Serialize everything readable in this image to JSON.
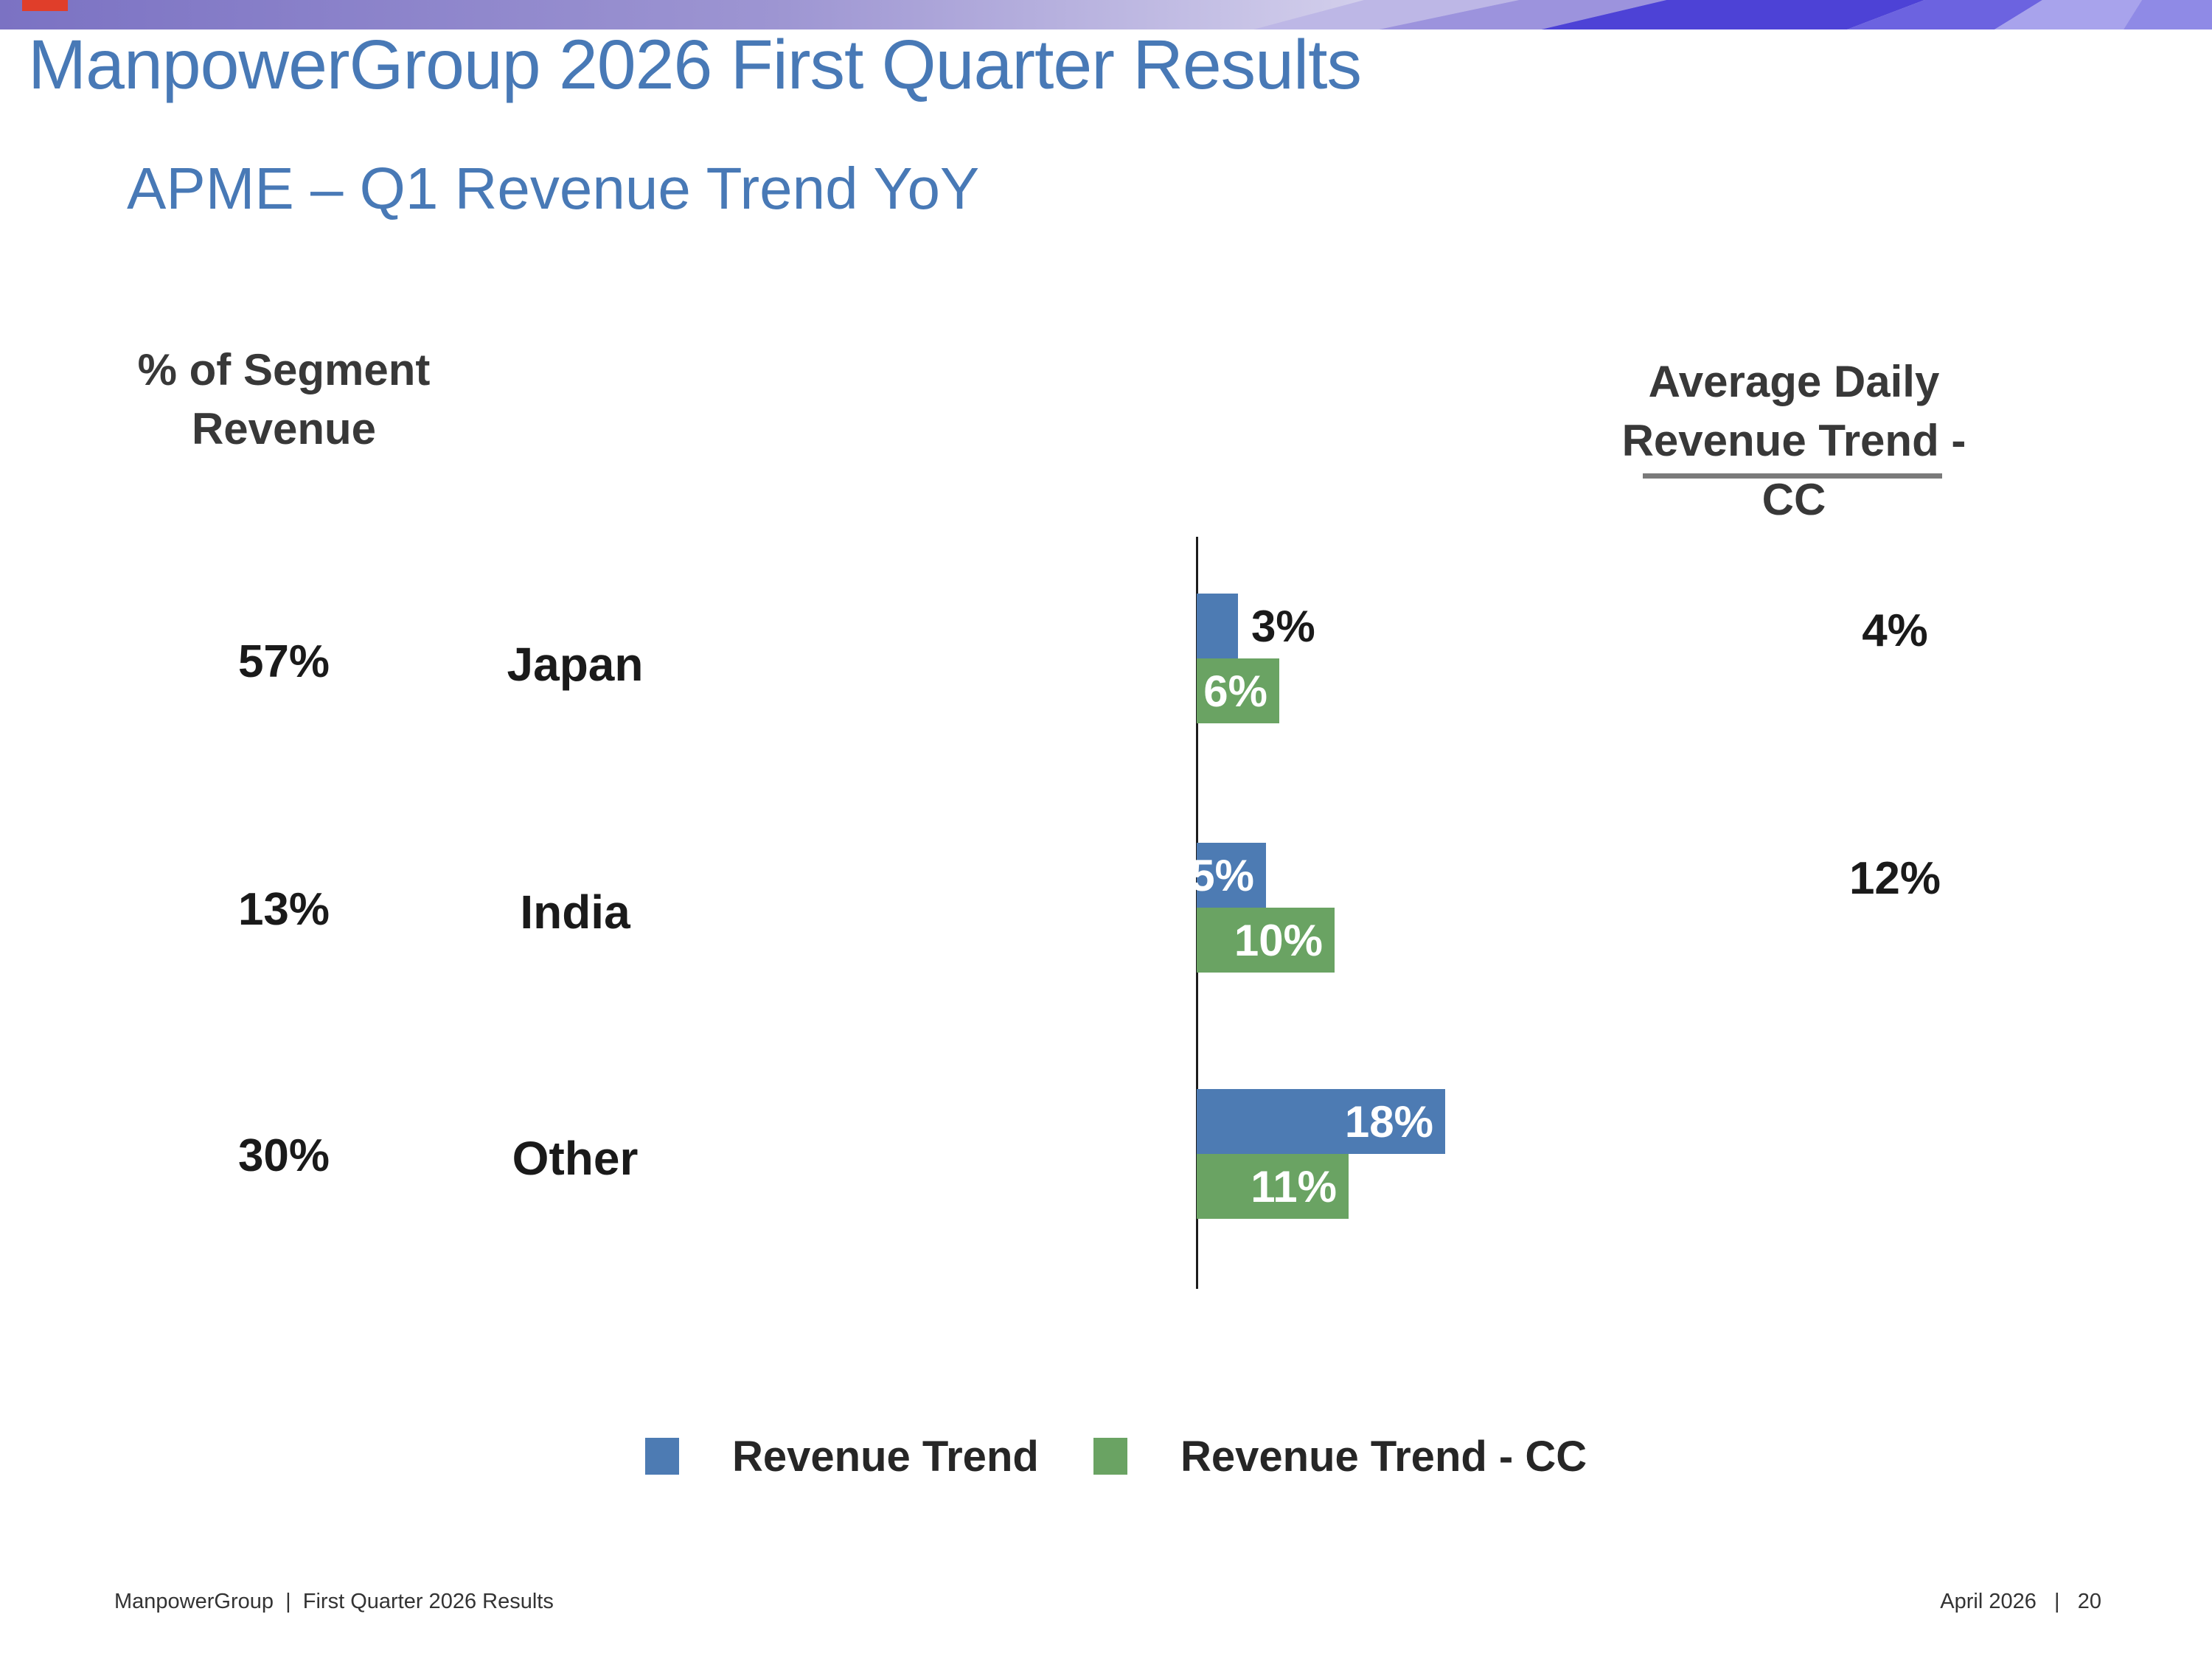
{
  "slide": {
    "title": "ManpowerGroup 2026 First Quarter Results",
    "subtitle": "APME – Q1 Revenue Trend YoY"
  },
  "colors": {
    "title_blue": "#4879b6",
    "bar_blue": "#4d7bb3",
    "bar_green": "#6aa363",
    "banner_purple": "#7b72c3",
    "underline_gray": "#7a7a7a",
    "red_accent": "#e03e2a",
    "text_dark": "#1a1a1a"
  },
  "chart_data": {
    "type": "bar",
    "orientation": "horizontal",
    "value_suffix": "%",
    "categories": [
      "Japan",
      "India",
      "Other"
    ],
    "series": [
      {
        "name": "Revenue Trend",
        "color": "#4d7bb3",
        "values": [
          3,
          5,
          18
        ]
      },
      {
        "name": "Revenue Trend - CC",
        "color": "#6aa363",
        "values": [
          6,
          10,
          11
        ]
      }
    ],
    "left_header_lines": [
      "% of Segment",
      "Revenue"
    ],
    "right_header_lines": [
      "Average Daily",
      "Revenue Trend - CC"
    ],
    "rows": [
      {
        "category": "Japan",
        "segment_share": "57%",
        "revenue_trend": "3%",
        "revenue_trend_cc": "6%",
        "avg_daily_revenue_trend_cc": "4%"
      },
      {
        "category": "India",
        "segment_share": "13%",
        "revenue_trend": "5%",
        "revenue_trend_cc": "10%",
        "avg_daily_revenue_trend_cc": "12%"
      },
      {
        "category": "Other",
        "segment_share": "30%",
        "revenue_trend": "18%",
        "revenue_trend_cc": "11%",
        "avg_daily_revenue_trend_cc": ""
      }
    ],
    "legend_position": "bottom",
    "grid": false
  },
  "legend": {
    "items": [
      {
        "label": "Revenue Trend",
        "color": "#4d7bb3"
      },
      {
        "label": "Revenue Trend - CC",
        "color": "#6aa363"
      }
    ]
  },
  "footer": {
    "left": "ManpowerGroup  |  First Quarter 2026 Results",
    "right": "April 2026   |   20"
  }
}
